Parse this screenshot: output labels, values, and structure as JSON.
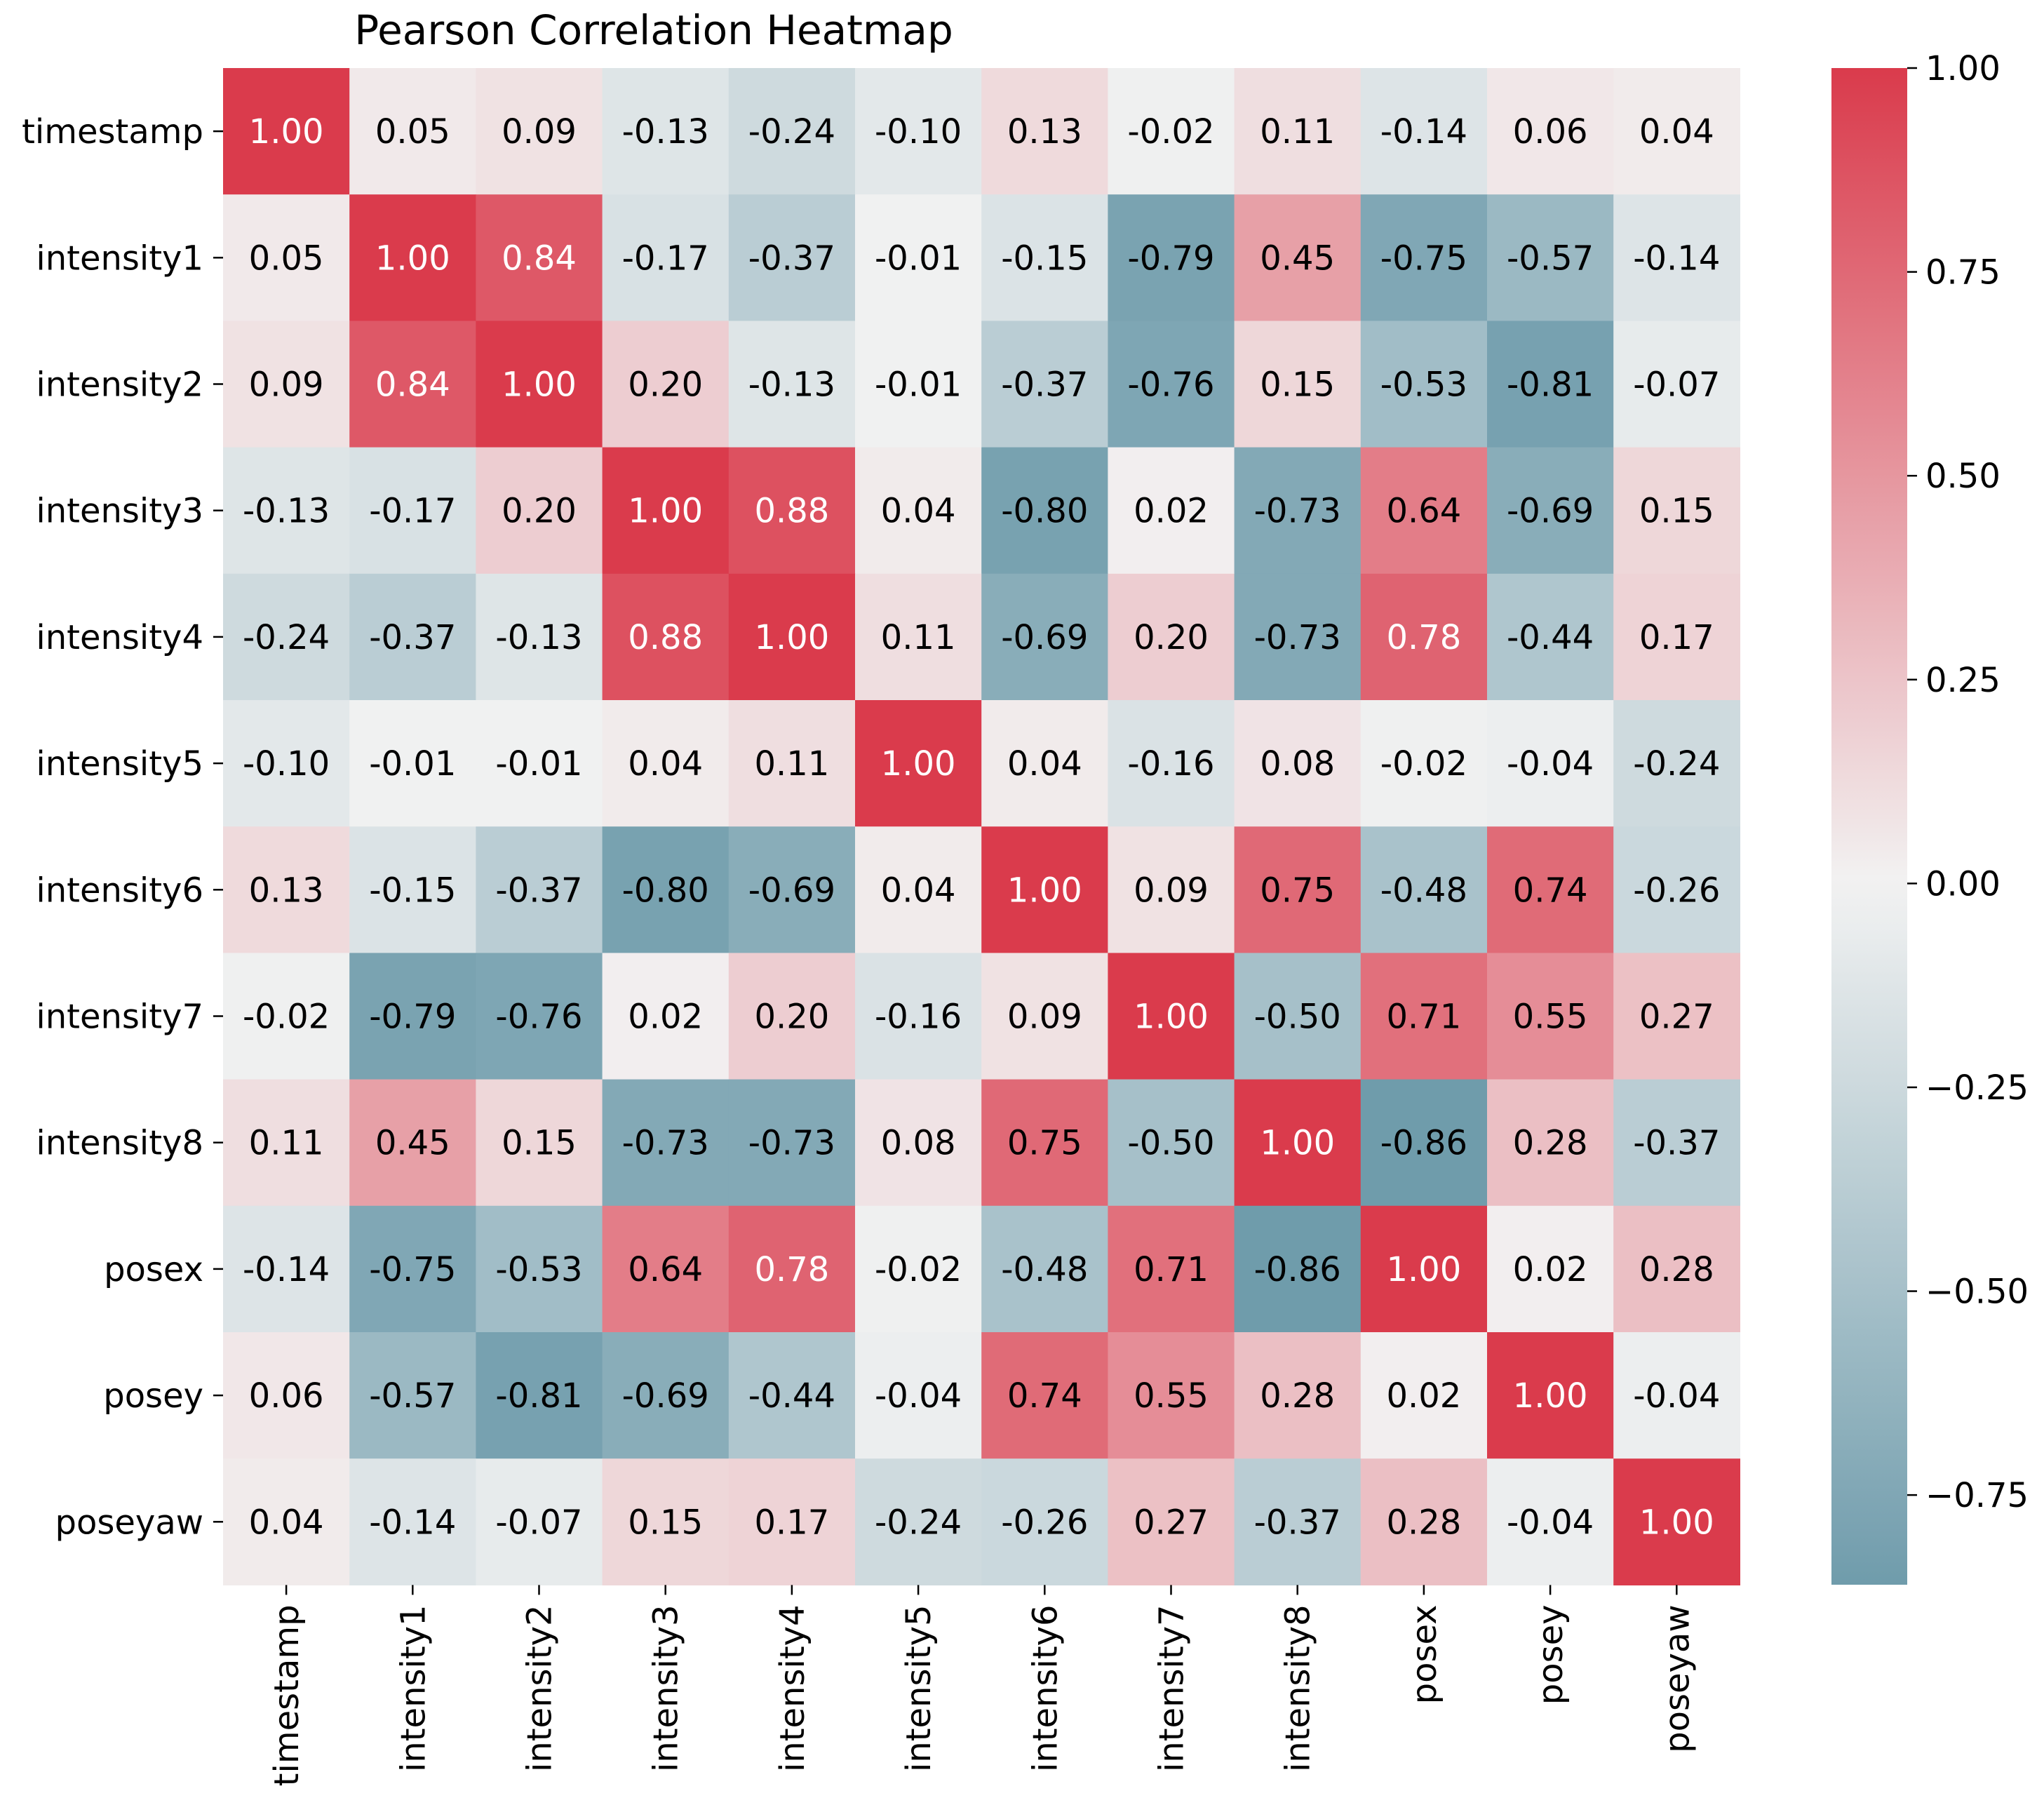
{
  "chart_data": {
    "type": "heatmap",
    "title": "Pearson Correlation Heatmap",
    "xlabel": "",
    "ylabel": "",
    "row_labels": [
      "timestamp",
      "intensity1",
      "intensity2",
      "intensity3",
      "intensity4",
      "intensity5",
      "intensity6",
      "intensity7",
      "intensity8",
      "posex",
      "posey",
      "poseyaw"
    ],
    "col_labels": [
      "timestamp",
      "intensity1",
      "intensity2",
      "intensity3",
      "intensity4",
      "intensity5",
      "intensity6",
      "intensity7",
      "intensity8",
      "posex",
      "posey",
      "poseyaw"
    ],
    "values": [
      [
        1.0,
        0.05,
        0.09,
        -0.13,
        -0.24,
        -0.1,
        0.13,
        -0.02,
        0.11,
        -0.14,
        0.06,
        0.04
      ],
      [
        0.05,
        1.0,
        0.84,
        -0.17,
        -0.37,
        -0.01,
        -0.15,
        -0.79,
        0.45,
        -0.75,
        -0.57,
        -0.14
      ],
      [
        0.09,
        0.84,
        1.0,
        0.2,
        -0.13,
        -0.01,
        -0.37,
        -0.76,
        0.15,
        -0.53,
        -0.81,
        -0.07
      ],
      [
        -0.13,
        -0.17,
        0.2,
        1.0,
        0.88,
        0.04,
        -0.8,
        0.02,
        -0.73,
        0.64,
        -0.69,
        0.15
      ],
      [
        -0.24,
        -0.37,
        -0.13,
        0.88,
        1.0,
        0.11,
        -0.69,
        0.2,
        -0.73,
        0.78,
        -0.44,
        0.17
      ],
      [
        -0.1,
        -0.01,
        -0.01,
        0.04,
        0.11,
        1.0,
        0.04,
        -0.16,
        0.08,
        -0.02,
        -0.04,
        -0.24
      ],
      [
        0.13,
        -0.15,
        -0.37,
        -0.8,
        -0.69,
        0.04,
        1.0,
        0.09,
        0.75,
        -0.48,
        0.74,
        -0.26
      ],
      [
        -0.02,
        -0.79,
        -0.76,
        0.02,
        0.2,
        -0.16,
        0.09,
        1.0,
        -0.5,
        0.71,
        0.55,
        0.27
      ],
      [
        0.11,
        0.45,
        0.15,
        -0.73,
        -0.73,
        0.08,
        0.75,
        -0.5,
        1.0,
        -0.86,
        0.28,
        -0.37
      ],
      [
        -0.14,
        -0.75,
        -0.53,
        0.64,
        0.78,
        -0.02,
        -0.48,
        0.71,
        -0.86,
        1.0,
        0.02,
        0.28
      ],
      [
        0.06,
        -0.57,
        -0.81,
        -0.69,
        -0.44,
        -0.04,
        0.74,
        0.55,
        0.28,
        0.02,
        1.0,
        -0.04
      ],
      [
        0.04,
        -0.14,
        -0.07,
        0.15,
        0.17,
        -0.24,
        -0.26,
        0.27,
        -0.37,
        0.28,
        -0.04,
        1.0
      ]
    ],
    "value_format": "2 decimals",
    "colorbar": {
      "range": [
        -0.86,
        1.0
      ],
      "ticks": [
        1.0,
        0.75,
        0.5,
        0.25,
        0.0,
        -0.25,
        -0.5,
        -0.75
      ],
      "tick_labels": [
        "1.00",
        "0.75",
        "0.50",
        "0.25",
        "0.00",
        "−0.25",
        "−0.50",
        "−0.75"
      ]
    },
    "colors": {
      "negative": "#5a8ea0",
      "neutral": "#f2f2f2",
      "positive": "#da3b4c"
    }
  }
}
